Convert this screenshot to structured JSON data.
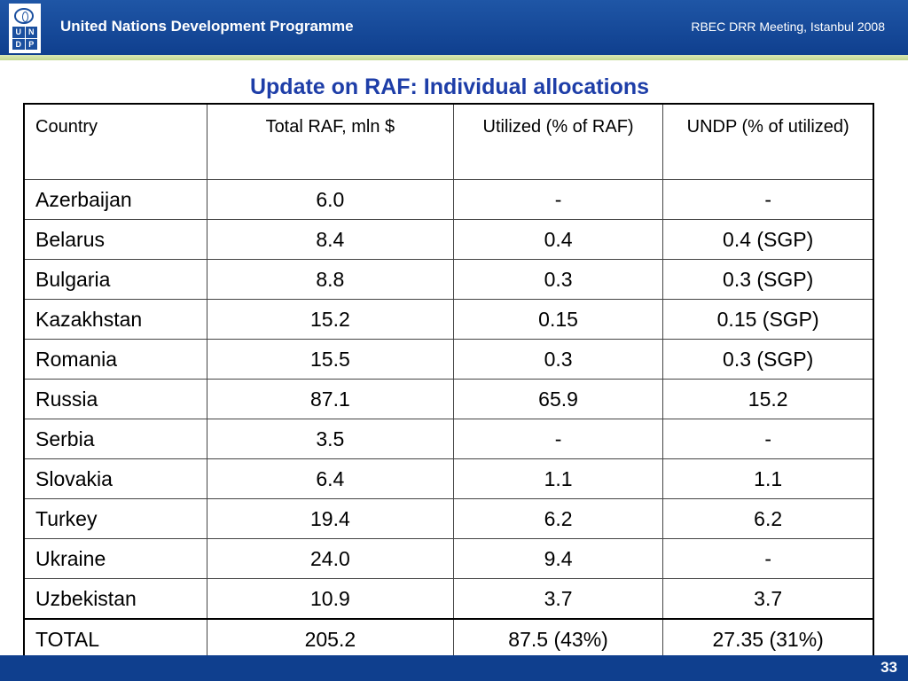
{
  "header": {
    "logo_letters": [
      "U",
      "N",
      "D",
      "P"
    ],
    "org_name": "United Nations Development Programme",
    "meeting": "RBEC DRR Meeting, Istanbul 2008"
  },
  "title": "Update on RAF: Individual allocations",
  "table": {
    "headers": [
      "Country",
      "Total RAF, mln $",
      "Utilized (% of RAF)",
      "UNDP (% of utilized)"
    ],
    "rows": [
      [
        "Azerbaijan",
        "6.0",
        "-",
        "-"
      ],
      [
        "Belarus",
        "8.4",
        "0.4",
        "0.4 (SGP)"
      ],
      [
        "Bulgaria",
        "8.8",
        "0.3",
        "0.3 (SGP)"
      ],
      [
        "Kazakhstan",
        "15.2",
        "0.15",
        "0.15 (SGP)"
      ],
      [
        "Romania",
        "15.5",
        "0.3",
        "0.3 (SGP)"
      ],
      [
        "Russia",
        "87.1",
        "65.9",
        "15.2"
      ],
      [
        "Serbia",
        "3.5",
        "-",
        "-"
      ],
      [
        "Slovakia",
        "6.4",
        "1.1",
        "1.1"
      ],
      [
        "Turkey",
        "19.4",
        "6.2",
        "6.2"
      ],
      [
        "Ukraine",
        "24.0",
        "9.4",
        "-"
      ],
      [
        "Uzbekistan",
        "10.9",
        "3.7",
        "3.7"
      ],
      [
        "TOTAL",
        "205.2",
        "87.5 (43%)",
        "27.35 (31%)"
      ]
    ]
  },
  "footer": {
    "page_number": "33"
  },
  "colors": {
    "header_blue": "#1a4f9f",
    "title_blue": "#1e3ea8",
    "stripe_green": "#c3d890"
  }
}
